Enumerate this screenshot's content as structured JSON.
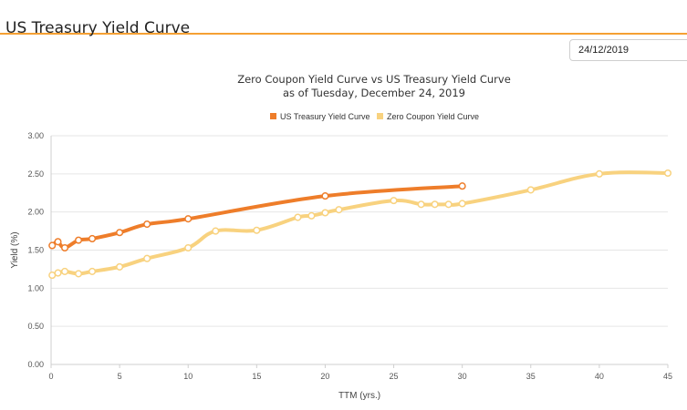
{
  "page": {
    "title": "US Treasury Yield Curve",
    "date_value": "24/12/2019"
  },
  "chart_data": {
    "type": "line",
    "title": "Zero Coupon Yield Curve vs US Treasury Yield Curve",
    "subtitle": "as of Tuesday, December 24, 2019",
    "xlabel": "TTM (yrs.)",
    "ylabel": "Yield (%)",
    "xlim": [
      0,
      45
    ],
    "ylim": [
      0,
      3
    ],
    "x_ticks": [
      0,
      5,
      10,
      15,
      20,
      25,
      30,
      35,
      40,
      45
    ],
    "y_ticks": [
      0.0,
      0.5,
      1.0,
      1.5,
      2.0,
      2.5,
      3.0
    ],
    "grid": "horizontal",
    "legend_position": "top",
    "series": [
      {
        "name": "US Treasury Yield Curve",
        "color": "#ee7d2a",
        "points": [
          [
            0.08,
            1.56
          ],
          [
            0.25,
            1.59
          ],
          [
            0.5,
            1.61
          ],
          [
            1,
            1.53
          ],
          [
            2,
            1.63
          ],
          [
            3,
            1.65
          ],
          [
            5,
            1.73
          ],
          [
            7,
            1.84
          ],
          [
            10,
            1.91
          ],
          [
            20,
            2.21
          ],
          [
            30,
            2.34
          ]
        ],
        "markers_x": [
          0.08,
          0.5,
          1,
          2,
          3,
          5,
          7,
          10,
          20,
          30
        ]
      },
      {
        "name": "Zero Coupon Yield Curve",
        "color": "#f8d27f",
        "points": [
          [
            0.08,
            1.17
          ],
          [
            0.5,
            1.2
          ],
          [
            1,
            1.22
          ],
          [
            2,
            1.19
          ],
          [
            3,
            1.22
          ],
          [
            5,
            1.28
          ],
          [
            7,
            1.39
          ],
          [
            10,
            1.53
          ],
          [
            12,
            1.75
          ],
          [
            15,
            1.76
          ],
          [
            18,
            1.93
          ],
          [
            19,
            1.95
          ],
          [
            20,
            1.99
          ],
          [
            21,
            2.03
          ],
          [
            25,
            2.15
          ],
          [
            27,
            2.1
          ],
          [
            28,
            2.1
          ],
          [
            29,
            2.1
          ],
          [
            30,
            2.11
          ],
          [
            35,
            2.29
          ],
          [
            40,
            2.5
          ],
          [
            45,
            2.51
          ]
        ],
        "markers_x": [
          0.08,
          0.5,
          1,
          2,
          3,
          5,
          7,
          10,
          12,
          15,
          18,
          19,
          20,
          21,
          25,
          27,
          28,
          29,
          30,
          35,
          40,
          45
        ]
      }
    ]
  }
}
